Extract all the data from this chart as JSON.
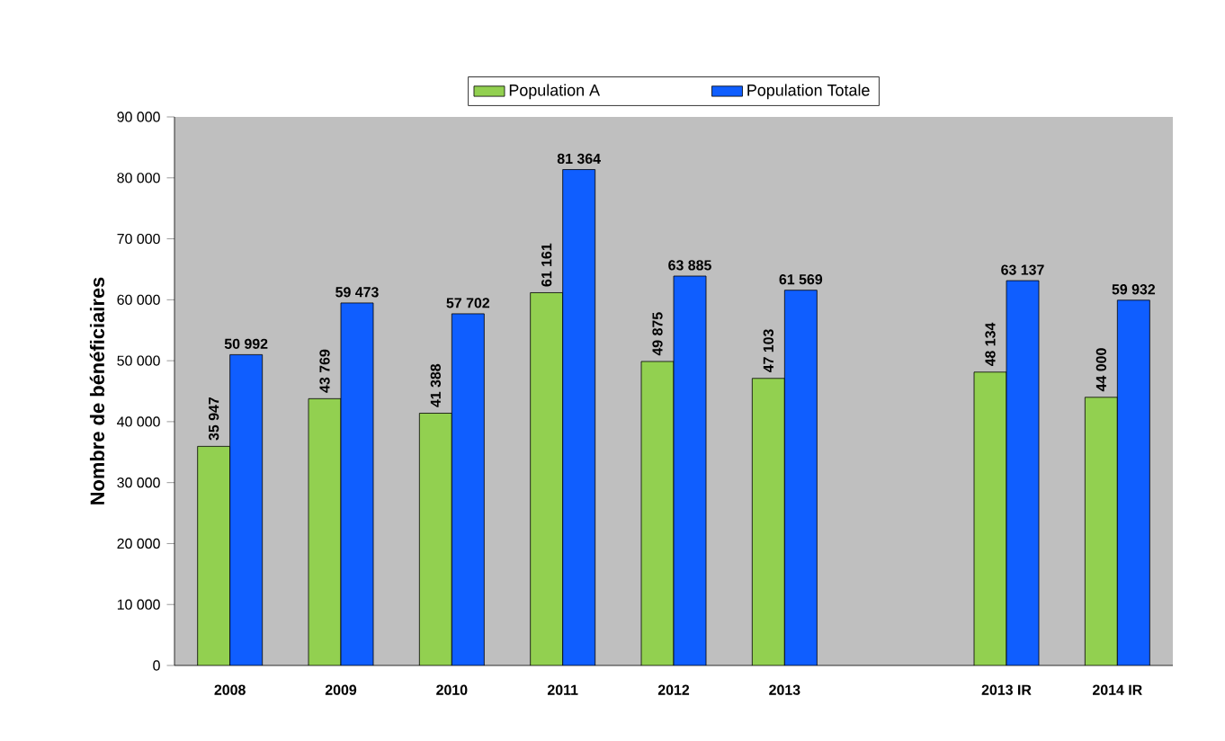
{
  "chart_data": {
    "type": "bar",
    "ylabel": "Nombre de bénéficiaires",
    "categories": [
      "2008",
      "2009",
      "2010",
      "2011",
      "2012",
      "2013",
      null,
      "2013 IR",
      "2014 IR"
    ],
    "series": [
      {
        "name": "Population A",
        "color": "#92d050",
        "values": [
          35947,
          43769,
          41388,
          61161,
          49875,
          47103,
          null,
          48134,
          44000
        ],
        "value_labels": [
          "35 947",
          "43 769",
          "41 388",
          "61 161",
          "49 875",
          "47 103",
          null,
          "48 134",
          "44 000"
        ]
      },
      {
        "name": "Population Totale",
        "color": "#0f5eff",
        "values": [
          50992,
          59473,
          57702,
          81364,
          63885,
          61569,
          null,
          63137,
          59932
        ],
        "value_labels": [
          "50 992",
          "59 473",
          "57 702",
          "81 364",
          "63 885",
          "61 569",
          null,
          "63 137",
          "59 932"
        ]
      }
    ],
    "ylim": [
      0,
      90000
    ],
    "yticks": [
      {
        "value": 0,
        "label": "0"
      },
      {
        "value": 10000,
        "label": "10 000"
      },
      {
        "value": 20000,
        "label": "20 000"
      },
      {
        "value": 30000,
        "label": "30 000"
      },
      {
        "value": 40000,
        "label": "40 000"
      },
      {
        "value": 50000,
        "label": "50 000"
      },
      {
        "value": 60000,
        "label": "60 000"
      },
      {
        "value": 70000,
        "label": "70 000"
      },
      {
        "value": 80000,
        "label": "80 000"
      },
      {
        "value": 90000,
        "label": "90 000"
      }
    ],
    "legend": "top",
    "grid": false
  }
}
